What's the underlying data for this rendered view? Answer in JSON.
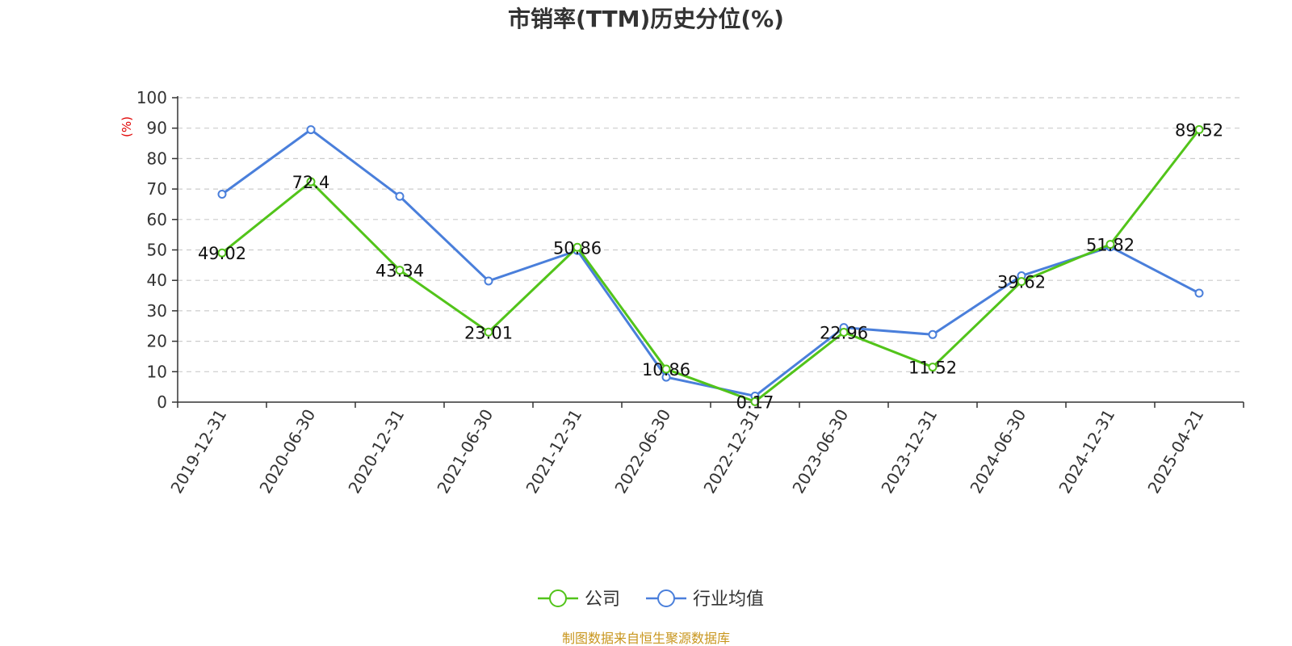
{
  "chart_data": {
    "type": "line",
    "title": "市销率(TTM)历史分位(%)",
    "y_unit": "(%)",
    "categories": [
      "2019-12-31",
      "2020-06-30",
      "2020-12-31",
      "2021-06-30",
      "2021-12-31",
      "2022-06-30",
      "2022-12-31",
      "2023-06-30",
      "2023-12-31",
      "2024-06-30",
      "2024-12-31",
      "2025-04-21"
    ],
    "ylim": [
      0,
      100
    ],
    "y_ticks": [
      0,
      10,
      20,
      30,
      40,
      50,
      60,
      70,
      80,
      90,
      100
    ],
    "grid": true,
    "legend_position": "bottom-center",
    "series": [
      {
        "name": "公司",
        "color": "#52c41a",
        "values": [
          49.02,
          72.4,
          43.34,
          23.01,
          50.86,
          10.86,
          0.17,
          22.96,
          11.52,
          39.62,
          51.82,
          89.52
        ],
        "data_labels": [
          "49.02",
          "72.4",
          "43.34",
          "23.01",
          "50.86",
          "10.86",
          "0.17",
          "22.96",
          "11.52",
          "39.62",
          "51.82",
          "89.52"
        ]
      },
      {
        "name": "行业均值",
        "color": "#4a7fdb",
        "values": [
          68.3,
          89.5,
          67.6,
          39.8,
          49.8,
          8.2,
          2.0,
          24.5,
          22.2,
          41.5,
          51.0,
          35.8
        ]
      }
    ]
  },
  "footer": {
    "source": "制图数据来自恒生聚源数据库"
  }
}
